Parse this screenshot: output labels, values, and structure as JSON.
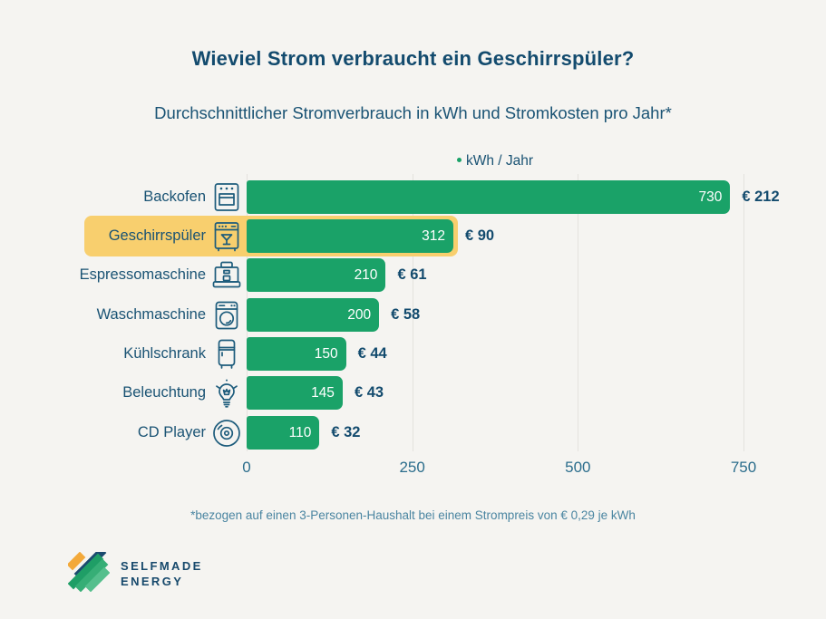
{
  "page": {
    "title": "Wieviel Strom verbraucht ein Geschirrspüler?",
    "subtitle": "Durchschnittlicher Stromverbrauch in kWh und Stromkosten pro Jahr*",
    "footnote": "*bezogen auf einen 3-Personen-Haushalt bei einem Strompreis von € 0,29 je kWh"
  },
  "legend": {
    "label": "kWh / Jahr"
  },
  "logo": {
    "line1": "SELFMADE",
    "line2": "ENERGY"
  },
  "colors": {
    "bar": "#1aa268",
    "highlight": "#f8cf6e",
    "title": "#134b6e",
    "label": "#1a5374",
    "tick": "#2b6d8c",
    "footnote": "#4a85a1",
    "grid": "#e4e2de",
    "icon": "#1d5c7c"
  },
  "chart_data": {
    "type": "bar",
    "orientation": "horizontal",
    "title": "Wieviel Strom verbraucht ein Geschirrspüler?",
    "subtitle": "Durchschnittlicher Stromverbrauch in kWh und Stromkosten pro Jahr*",
    "series_label": "kWh / Jahr",
    "xlabel": "",
    "ylabel": "",
    "xlim": [
      0,
      750
    ],
    "x_ticks": [
      0,
      250,
      500,
      750
    ],
    "grid": "vertical gridlines on",
    "legend_position": "top-center",
    "highlighted_category": "Geschirrspüler",
    "categories": [
      "Backofen",
      "Geschirrspüler",
      "Espressomaschine",
      "Waschmaschine",
      "Kühlschrank",
      "Beleuchtung",
      "CD Player"
    ],
    "values": [
      730,
      312,
      210,
      200,
      150,
      145,
      110
    ],
    "cost_labels": [
      "€ 212",
      "€ 90",
      "€ 61",
      "€ 58",
      "€ 44",
      "€ 43",
      "€ 32"
    ],
    "rows": [
      {
        "label": "Backofen",
        "value": 730,
        "cost": "€ 212",
        "icon": "oven-icon",
        "highlighted": false
      },
      {
        "label": "Geschirrspüler",
        "value": 312,
        "cost": "€ 90",
        "icon": "dishwasher-icon",
        "highlighted": true
      },
      {
        "label": "Espressomaschine",
        "value": 210,
        "cost": "€ 61",
        "icon": "espresso-machine-icon",
        "highlighted": false
      },
      {
        "label": "Waschmaschine",
        "value": 200,
        "cost": "€ 58",
        "icon": "washing-machine-icon",
        "highlighted": false
      },
      {
        "label": "Kühlschrank",
        "value": 150,
        "cost": "€ 44",
        "icon": "fridge-icon",
        "highlighted": false
      },
      {
        "label": "Beleuchtung",
        "value": 145,
        "cost": "€ 43",
        "icon": "lightbulb-icon",
        "highlighted": false
      },
      {
        "label": "CD Player",
        "value": 110,
        "cost": "€ 32",
        "icon": "cd-player-icon",
        "highlighted": false
      }
    ]
  }
}
